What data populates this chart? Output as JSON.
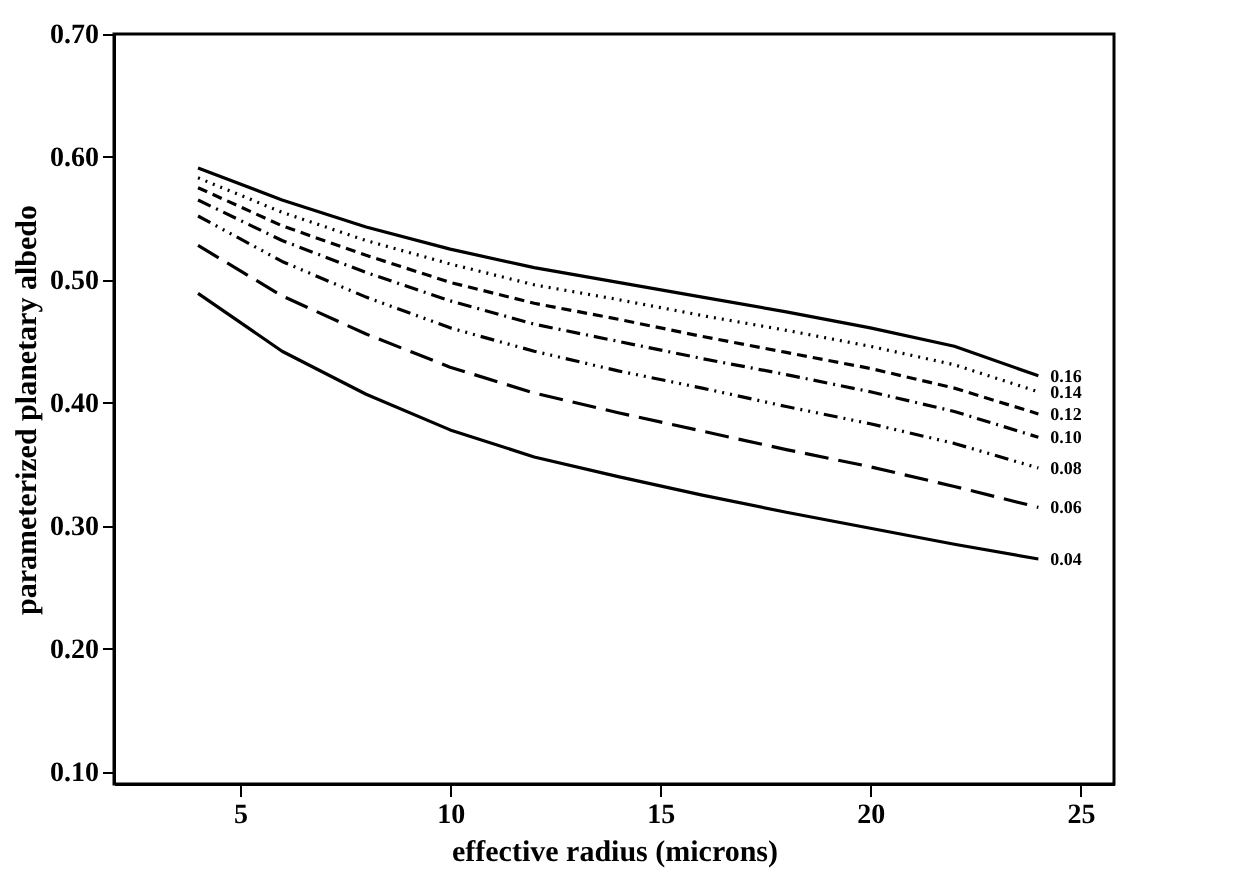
{
  "chart_data": {
    "type": "line",
    "xlabel": "effective radius (microns)",
    "ylabel": "parameterized planetary albedo",
    "x": [
      4,
      6,
      8,
      10,
      12,
      14,
      16,
      18,
      20,
      22,
      24
    ],
    "series": [
      {
        "name": "0.16",
        "color": "#000000",
        "line_style": "solid",
        "values": [
          0.591,
          0.565,
          0.543,
          0.525,
          0.51,
          0.498,
          0.486,
          0.474,
          0.461,
          0.446,
          0.422
        ]
      },
      {
        "name": "0.14",
        "color": "#000000",
        "line_style": "dotted",
        "values": [
          0.583,
          0.555,
          0.532,
          0.513,
          0.496,
          0.484,
          0.471,
          0.459,
          0.446,
          0.431,
          0.409
        ]
      },
      {
        "name": "0.12",
        "color": "#000000",
        "line_style": "dashed",
        "values": [
          0.575,
          0.544,
          0.52,
          0.498,
          0.481,
          0.468,
          0.454,
          0.441,
          0.428,
          0.412,
          0.391
        ]
      },
      {
        "name": "0.10",
        "color": "#000000",
        "line_style": "dashed",
        "values": [
          0.565,
          0.532,
          0.506,
          0.483,
          0.464,
          0.45,
          0.436,
          0.423,
          0.409,
          0.393,
          0.372
        ]
      },
      {
        "name": "0.08",
        "color": "#000000",
        "line_style": "dashed",
        "values": [
          0.552,
          0.515,
          0.486,
          0.461,
          0.442,
          0.426,
          0.412,
          0.397,
          0.383,
          0.367,
          0.347
        ]
      },
      {
        "name": "0.06",
        "color": "#000000",
        "line_style": "dashed",
        "values": [
          0.528,
          0.487,
          0.456,
          0.429,
          0.408,
          0.392,
          0.377,
          0.362,
          0.348,
          0.332,
          0.315
        ]
      },
      {
        "name": "0.04",
        "color": "#000000",
        "line_style": "solid",
        "values": [
          0.489,
          0.442,
          0.407,
          0.378,
          0.356,
          0.34,
          0.325,
          0.311,
          0.298,
          0.285,
          0.273
        ]
      }
    ],
    "xlim": [
      2,
      25.8
    ],
    "xticks": [
      5,
      10,
      15,
      20,
      25
    ],
    "ylim": [
      0.09,
      0.7
    ],
    "yticks": [
      {
        "value": 0.1,
        "label": "0.10"
      },
      {
        "value": 0.2,
        "label": "0.20"
      },
      {
        "value": 0.3,
        "label": "0.30"
      },
      {
        "value": 0.4,
        "label": "0.40"
      },
      {
        "value": 0.5,
        "label": "0.50"
      },
      {
        "value": 0.6,
        "label": "0.60"
      },
      {
        "value": 0.7,
        "label": "0.70"
      }
    ],
    "grid": false
  }
}
